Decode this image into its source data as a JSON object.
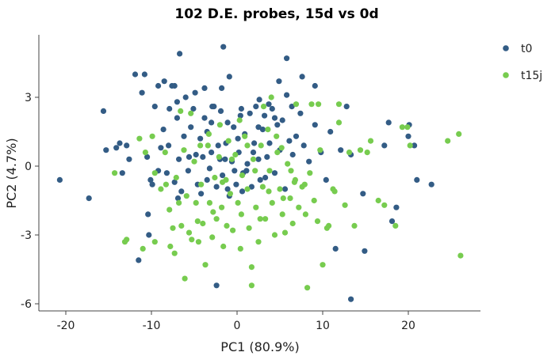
{
  "chart_data": {
    "type": "scatter",
    "title": "102 D.E. probes, 15d vs 0d",
    "xlabel": "PC1 (80.9%)",
    "ylabel": "PC2 (4.7%)",
    "xlim": [
      -22.5,
      28.5
    ],
    "ylim": [
      -6.4,
      5.7
    ],
    "xticks": [
      -20,
      -10,
      0,
      10,
      20
    ],
    "yticks": [
      -6,
      -3,
      0,
      3
    ],
    "xtick_labels": [
      "-20",
      "-10",
      "0",
      "10",
      "20"
    ],
    "ytick_labels": [
      "-6",
      "-3",
      "0",
      "3"
    ],
    "legend_position": "top-right",
    "grid": false,
    "series": [
      {
        "name": "t0",
        "color": "#335c85",
        "points": [
          [
            -20.7,
            -0.6
          ],
          [
            -17.3,
            -1.4
          ],
          [
            -15.6,
            2.4
          ],
          [
            -15.3,
            0.7
          ],
          [
            -14.1,
            0.8
          ],
          [
            -13.7,
            1.0
          ],
          [
            -13.4,
            -0.3
          ],
          [
            -12.6,
            0.3
          ],
          [
            -11.9,
            4.0
          ],
          [
            -11.5,
            -4.1
          ],
          [
            -10.8,
            4.0
          ],
          [
            -11.1,
            3.2
          ],
          [
            -10.5,
            0.4
          ],
          [
            -10.1,
            -0.6
          ],
          [
            -10.4,
            -2.1
          ],
          [
            -10.3,
            -3.0
          ],
          [
            -9.9,
            -0.8
          ],
          [
            -9.6,
            2.6
          ],
          [
            -9.2,
            3.5
          ],
          [
            -8.9,
            0.8
          ],
          [
            -8.6,
            1.6
          ],
          [
            -8.2,
            -0.3
          ],
          [
            -7.9,
            2.5
          ],
          [
            -7.6,
            3.5
          ],
          [
            -7.3,
            -0.7
          ],
          [
            -7.0,
            2.1
          ],
          [
            -6.8,
            0.3
          ],
          [
            -6.5,
            -1.1
          ],
          [
            -6.2,
            1.3
          ],
          [
            -6.0,
            3.0
          ],
          [
            -5.7,
            -0.2
          ],
          [
            -5.4,
            1.7
          ],
          [
            -5.1,
            2.5
          ],
          [
            -4.8,
            0.5
          ],
          [
            -4.6,
            -0.8
          ],
          [
            -4.3,
            1.2
          ],
          [
            -4.0,
            0.4
          ],
          [
            -3.8,
            2.1
          ],
          [
            -3.5,
            1.5
          ],
          [
            -3.2,
            -0.1
          ],
          [
            -3.0,
            0.6
          ],
          [
            -2.7,
            2.6
          ],
          [
            -2.4,
            -0.9
          ],
          [
            -2.2,
            0.9
          ],
          [
            -1.9,
            2.4
          ],
          [
            -1.7,
            -0.4
          ],
          [
            -1.4,
            0.3
          ],
          [
            -1.1,
            1.9
          ],
          [
            -0.9,
            -1.3
          ],
          [
            -0.6,
            0.2
          ],
          [
            -0.4,
            1.7
          ],
          [
            -0.1,
            -0.8
          ],
          [
            0.2,
            0.6
          ],
          [
            0.4,
            2.2
          ],
          [
            0.7,
            -0.3
          ],
          [
            0.9,
            1.4
          ],
          [
            1.2,
            0.1
          ],
          [
            1.5,
            2.3
          ],
          [
            1.7,
            -0.9
          ],
          [
            2.0,
            1.0
          ],
          [
            2.2,
            2.6
          ],
          [
            2.5,
            0.3
          ],
          [
            2.7,
            -0.6
          ],
          [
            3.0,
            1.6
          ],
          [
            3.2,
            2.2
          ],
          [
            3.5,
            0.4
          ],
          [
            3.8,
            1.0
          ],
          [
            4.1,
            2.5
          ],
          [
            4.4,
            -0.3
          ],
          [
            4.7,
            1.8
          ],
          [
            5.0,
            0.7
          ],
          [
            5.3,
            2.0
          ],
          [
            5.6,
            -1.0
          ],
          [
            5.8,
            3.1
          ],
          [
            6.1,
            1.1
          ],
          [
            6.4,
            2.6
          ],
          [
            6.9,
            1.3
          ],
          [
            7.4,
            2.3
          ],
          [
            7.8,
            0.9
          ],
          [
            8.4,
            0.2
          ],
          [
            9.1,
            1.8
          ],
          [
            9.8,
            0.6
          ],
          [
            10.4,
            -0.6
          ],
          [
            10.9,
            1.5
          ],
          [
            11.5,
            -3.6
          ],
          [
            12.1,
            0.7
          ],
          [
            12.8,
            2.6
          ],
          [
            13.3,
            0.5
          ],
          [
            13.3,
            -5.8
          ],
          [
            14.9,
            -3.7
          ],
          [
            14.7,
            -1.2
          ],
          [
            17.2,
            0.9
          ],
          [
            17.7,
            1.9
          ],
          [
            18.1,
            -2.4
          ],
          [
            18.6,
            -1.8
          ],
          [
            20.0,
            1.3
          ],
          [
            20.1,
            1.8
          ],
          [
            20.7,
            0.9
          ],
          [
            21.0,
            -0.6
          ],
          [
            22.7,
            -0.8
          ],
          [
            -6.7,
            4.9
          ],
          [
            -3.0,
            1.9
          ],
          [
            -2.4,
            -5.2
          ],
          [
            -1.6,
            5.2
          ],
          [
            -0.9,
            3.9
          ],
          [
            1.1,
            -0.2
          ],
          [
            3.7,
            2.7
          ],
          [
            4.9,
            3.7
          ],
          [
            5.8,
            4.7
          ],
          [
            7.6,
            3.9
          ],
          [
            9.1,
            3.5
          ],
          [
            -7.3,
            3.5
          ],
          [
            -4.9,
            3.2
          ],
          [
            -2.9,
            2.6
          ],
          [
            -1.3,
            1.0
          ],
          [
            0.6,
            -1.1
          ],
          [
            2.5,
            1.7
          ],
          [
            4.4,
            2.1
          ],
          [
            6.5,
            0.5
          ],
          [
            -8.0,
            0.9
          ],
          [
            -5.6,
            0.4
          ],
          [
            -3.5,
            -0.6
          ],
          [
            -2.0,
            0.3
          ],
          [
            0.1,
            1.2
          ],
          [
            1.9,
            0.6
          ],
          [
            3.3,
            -0.5
          ],
          [
            -12.9,
            0.9
          ],
          [
            -9.2,
            -0.2
          ],
          [
            -6.9,
            -1.4
          ],
          [
            -4.2,
            -1.2
          ],
          [
            -1.1,
            -1.0
          ],
          [
            -0.3,
            -0.2
          ],
          [
            -8.5,
            3.7
          ],
          [
            -7.0,
            2.8
          ],
          [
            -3.8,
            3.4
          ],
          [
            -1.8,
            3.4
          ],
          [
            0.5,
            2.5
          ],
          [
            2.6,
            2.9
          ]
        ]
      },
      {
        "name": "t15j",
        "color": "#77cc4f",
        "points": [
          [
            -14.3,
            -0.3
          ],
          [
            -13.1,
            -3.3
          ],
          [
            -12.9,
            -3.2
          ],
          [
            -11.4,
            1.2
          ],
          [
            -11.0,
            -3.6
          ],
          [
            -10.7,
            0.6
          ],
          [
            -9.6,
            -0.3
          ],
          [
            -8.9,
            -1.0
          ],
          [
            -8.3,
            -0.8
          ],
          [
            -7.9,
            -1.9
          ],
          [
            -7.5,
            -2.7
          ],
          [
            -7.3,
            -3.8
          ],
          [
            -7.1,
            -0.5
          ],
          [
            -6.8,
            -1.6
          ],
          [
            -6.5,
            -2.6
          ],
          [
            -6.2,
            0.7
          ],
          [
            -5.9,
            -1.3
          ],
          [
            -5.6,
            -2.9
          ],
          [
            -5.3,
            -3.2
          ],
          [
            -5.0,
            0.2
          ],
          [
            -4.8,
            -1.6
          ],
          [
            -4.5,
            -3.3
          ],
          [
            -4.2,
            -0.8
          ],
          [
            -4.0,
            -2.5
          ],
          [
            -3.7,
            -4.3
          ],
          [
            -3.4,
            0.9
          ],
          [
            -3.2,
            -1.6
          ],
          [
            -2.9,
            -3.1
          ],
          [
            -2.6,
            -0.5
          ],
          [
            -2.4,
            -2.3
          ],
          [
            -2.1,
            0.4
          ],
          [
            -1.8,
            -1.8
          ],
          [
            -1.6,
            -3.5
          ],
          [
            -1.3,
            -0.6
          ],
          [
            -1.0,
            1.1
          ],
          [
            -0.8,
            -1.2
          ],
          [
            -0.5,
            -2.8
          ],
          [
            -0.2,
            0.5
          ],
          [
            0.1,
            -1.6
          ],
          [
            0.4,
            -3.6
          ],
          [
            0.6,
            -0.4
          ],
          [
            0.9,
            1.3
          ],
          [
            1.2,
            -1.0
          ],
          [
            1.4,
            -2.7
          ],
          [
            1.7,
            -4.4
          ],
          [
            1.9,
            0.3
          ],
          [
            2.2,
            -1.8
          ],
          [
            2.5,
            -3.3
          ],
          [
            2.8,
            0.9
          ],
          [
            3.0,
            -0.9
          ],
          [
            3.3,
            -2.3
          ],
          [
            3.6,
            1.6
          ],
          [
            3.8,
            -0.2
          ],
          [
            4.1,
            -1.6
          ],
          [
            4.4,
            -3.0
          ],
          [
            4.7,
            0.6
          ],
          [
            5.0,
            -1.0
          ],
          [
            5.3,
            -2.1
          ],
          [
            5.6,
            -2.9
          ],
          [
            5.9,
            0.1
          ],
          [
            6.2,
            -1.4
          ],
          [
            6.5,
            -2.5
          ],
          [
            6.8,
            -0.6
          ],
          [
            7.2,
            -1.8
          ],
          [
            7.6,
            -0.9
          ],
          [
            8.0,
            -2.1
          ],
          [
            8.5,
            -0.3
          ],
          [
            9.0,
            -1.5
          ],
          [
            9.5,
            2.7
          ],
          [
            10.0,
            -4.3
          ],
          [
            10.5,
            -2.7
          ],
          [
            11.2,
            -1.0
          ],
          [
            11.9,
            1.9
          ],
          [
            12.6,
            -1.7
          ],
          [
            13.1,
            0.6
          ],
          [
            13.7,
            -2.6
          ],
          [
            14.4,
            0.7
          ],
          [
            15.2,
            0.6
          ],
          [
            15.6,
            1.1
          ],
          [
            16.5,
            -1.5
          ],
          [
            17.2,
            -1.7
          ],
          [
            18.5,
            -2.6
          ],
          [
            19.3,
            1.7
          ],
          [
            19.9,
            1.7
          ],
          [
            20.2,
            0.9
          ],
          [
            24.6,
            1.1
          ],
          [
            25.9,
            1.4
          ],
          [
            26.1,
            -3.9
          ],
          [
            -5.4,
            2.3
          ],
          [
            -3.3,
            1.4
          ],
          [
            -1.7,
            -0.7
          ],
          [
            0.3,
            2.0
          ],
          [
            1.7,
            -5.2
          ],
          [
            2.7,
            -2.3
          ],
          [
            4.0,
            3.0
          ],
          [
            5.4,
            -1.4
          ],
          [
            6.9,
            2.7
          ],
          [
            8.7,
            2.7
          ],
          [
            10.7,
            -2.6
          ],
          [
            11.9,
            2.7
          ],
          [
            -9.6,
            -3.3
          ],
          [
            -7.8,
            -3.5
          ],
          [
            -6.1,
            -4.9
          ],
          [
            -4.6,
            -2.4
          ],
          [
            -2.8,
            -2.0
          ],
          [
            -1.2,
            -2.6
          ],
          [
            0.5,
            -2.1
          ],
          [
            2.1,
            -0.2
          ],
          [
            3.7,
            -1.1
          ],
          [
            5.2,
            0.8
          ],
          [
            6.7,
            -0.7
          ],
          [
            8.2,
            -5.3
          ],
          [
            9.7,
            0.7
          ],
          [
            11.4,
            -1.1
          ],
          [
            -9.9,
            1.3
          ],
          [
            -8.4,
            0.6
          ],
          [
            -6.6,
            2.4
          ],
          [
            -4.3,
            0.9
          ],
          [
            -2.0,
            1.8
          ],
          [
            -0.6,
            0.3
          ],
          [
            1.2,
            0.9
          ],
          [
            3.1,
            2.6
          ],
          [
            4.6,
            1.3
          ],
          [
            6.3,
            -0.2
          ],
          [
            7.9,
            -0.8
          ],
          [
            9.4,
            -2.4
          ]
        ]
      }
    ]
  }
}
